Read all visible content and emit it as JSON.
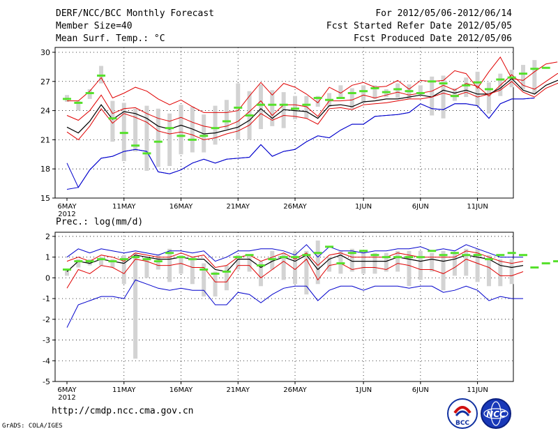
{
  "header": {
    "title": "DERF/NCC/BCC Monthly Forecast",
    "member_size": "Member Size=40",
    "variable": "Mean Surf. Temp.: °C",
    "period": "For 2012/05/06-2012/06/14",
    "fcst_started": "Fcst Started Refer Date 2012/05/05",
    "fcst_produced": "Fcst Produced Date 2012/05/06"
  },
  "footer": {
    "url": "http://cmdp.ncc.cma.gov.cn",
    "grads": "GrADS: COLA/IGES",
    "logo_bcc": "BCC",
    "logo_ncc": "NCC"
  },
  "colors": {
    "box": "#d3d3d3",
    "obs": "#55e02b",
    "mean": "#000000",
    "spread": "#e00000",
    "extreme": "#0000cc"
  },
  "chart_data": [
    {
      "type": "line",
      "title": "Mean Surf. Temp.: °C",
      "x_tick_labels": [
        "6MAY",
        "11MAY",
        "16MAY",
        "21MAY",
        "26MAY",
        "1JUN",
        "6JUN",
        "11JUN"
      ],
      "year_label": "2012",
      "x_tick_days": [
        0,
        5,
        10,
        15,
        20,
        26,
        31,
        36
      ],
      "ylim": [
        15,
        30.5
      ],
      "yticks": [
        15,
        18,
        21,
        24,
        27,
        30
      ],
      "n_days": 40,
      "series": [
        {
          "name": "max",
          "values": [
            18.6,
            16.1,
            17.9,
            19.1,
            19.3,
            19.8,
            20.0,
            19.8,
            17.7,
            17.5,
            17.9,
            18.6,
            19.0,
            18.6,
            19.0,
            19.1,
            19.2,
            20.5,
            19.3,
            19.8,
            20.0,
            20.8,
            21.4,
            21.2,
            22.0,
            22.6,
            22.6,
            23.4,
            23.5,
            23.6,
            23.8,
            24.7,
            24.2,
            24.1,
            24.7,
            24.7,
            24.5,
            23.2,
            24.7,
            25.2,
            25.2,
            25.3
          ]
        },
        {
          "name": "p90",
          "values": [
            25.0,
            25.0,
            26.0,
            27.4,
            25.3,
            25.8,
            26.4,
            26.0,
            25.2,
            24.6,
            25.1,
            24.4,
            23.8,
            23.8,
            23.8,
            24.0,
            25.5,
            26.9,
            25.6,
            26.8,
            26.4,
            25.7,
            24.8,
            26.4,
            25.8,
            26.6,
            26.9,
            26.4,
            26.5,
            27.1,
            26.2,
            27.1,
            27.0,
            27.1,
            28.1,
            27.8,
            26.3,
            28.0,
            29.5,
            27.3,
            27.1,
            28.0,
            28.8,
            29.0
          ]
        },
        {
          "name": "p75",
          "values": [
            23.5,
            23.0,
            24.0,
            25.6,
            23.7,
            24.2,
            24.3,
            23.7,
            23.2,
            22.9,
            23.3,
            22.8,
            22.4,
            22.2,
            22.4,
            22.9,
            23.9,
            25.0,
            23.5,
            24.6,
            24.6,
            24.4,
            23.4,
            25.0,
            25.0,
            25.1,
            25.6,
            25.3,
            25.6,
            25.9,
            25.6,
            25.8,
            26.0,
            26.6,
            26.1,
            26.8,
            26.5,
            25.5,
            26.6,
            27.7,
            26.6,
            26.2,
            27.0,
            27.8,
            28.1
          ]
        },
        {
          "name": "mean",
          "values": [
            22.3,
            21.7,
            22.9,
            24.6,
            23.1,
            23.9,
            23.7,
            23.2,
            22.4,
            22.1,
            22.5,
            22.1,
            21.6,
            21.7,
            22.0,
            22.3,
            23.0,
            24.2,
            23.2,
            24.1,
            24.0,
            23.9,
            23.2,
            24.5,
            24.6,
            24.4,
            24.9,
            25.0,
            25.2,
            25.2,
            25.4,
            25.6,
            25.4,
            26.1,
            25.8,
            26.1,
            25.7,
            25.7,
            26.3,
            27.3,
            26.1,
            25.7,
            26.6,
            27.1,
            27.4
          ]
        },
        {
          "name": "p25",
          "values": [
            21.8,
            21.0,
            22.4,
            24.2,
            22.7,
            23.7,
            23.3,
            22.8,
            21.9,
            21.6,
            21.8,
            21.5,
            21.0,
            21.2,
            21.6,
            21.9,
            22.5,
            23.7,
            23.0,
            23.5,
            23.4,
            23.2,
            22.6,
            24.2,
            24.3,
            24.1,
            24.6,
            24.7,
            24.8,
            25.0,
            25.2,
            25.2,
            25.4,
            25.8,
            25.5,
            25.9,
            25.4,
            25.7,
            26.1,
            27.0,
            25.9,
            25.4,
            26.3,
            26.8,
            27.2
          ]
        },
        {
          "name": "min",
          "values": [
            15.9,
            16.1,
            17.9,
            19.1,
            19.3,
            19.8,
            20.0,
            19.8,
            17.7,
            17.5,
            17.9,
            18.6,
            19.0,
            18.6,
            19.0,
            19.1,
            19.2,
            20.5,
            19.3,
            19.8,
            20.0,
            20.8,
            21.4,
            21.2,
            22.0,
            22.6,
            22.6,
            23.4,
            23.5,
            23.6,
            23.8,
            24.7,
            24.2,
            24.1,
            24.7,
            24.7,
            24.5,
            23.2,
            24.7,
            25.2,
            25.2,
            25.3
          ]
        },
        {
          "name": "observed",
          "values": [
            25.2,
            24.8,
            25.8,
            27.6,
            23.2,
            21.7,
            20.4,
            19.6,
            20.8,
            22.2,
            21.4,
            21.0,
            21.4,
            22.2,
            22.9,
            24.3,
            23.5,
            24.6,
            24.6,
            24.6,
            24.2,
            24.6,
            25.3,
            25.1,
            25.3,
            25.8,
            26.0,
            26.3,
            25.9,
            26.2,
            26.0,
            25.8,
            27.0,
            26.8,
            25.5,
            26.6,
            26.9,
            26.2,
            27.2,
            27.4,
            27.8,
            28.3,
            28.4
          ]
        },
        {
          "name": "box_high",
          "values": [
            25.6,
            25.0,
            26.2,
            28.6,
            25.0,
            24.8,
            24.2,
            24.5,
            24.2,
            23.7,
            24.6,
            24.4,
            23.6,
            24.5,
            25.1,
            26.8,
            26.0,
            26.7,
            26.1,
            25.9,
            25.5,
            25.5,
            25.5,
            25.8,
            26.6,
            26.3,
            26.6,
            26.6,
            26.2,
            26.8,
            26.7,
            26.6,
            27.5,
            27.6,
            26.3,
            27.4,
            28.0,
            26.9,
            27.8,
            28.2,
            28.7,
            29.2
          ]
        },
        {
          "name": "box_low",
          "values": [
            24.9,
            24.0,
            25.2,
            26.8,
            20.8,
            18.8,
            19.8,
            17.8,
            18.2,
            18.3,
            19.5,
            19.7,
            19.7,
            20.5,
            22.1,
            21.0,
            21.0,
            22.1,
            22.4,
            22.2,
            23.1,
            23.2,
            24.4,
            24.4,
            25.2,
            24.2,
            24.8,
            25.2,
            25.4,
            25.3,
            25.2,
            25.6,
            23.5,
            23.2,
            25.0,
            25.4,
            24.5,
            23.7,
            25.5,
            26.4,
            26.2,
            25.7
          ]
        }
      ],
      "xlabel": "",
      "ylabel": ""
    },
    {
      "type": "line",
      "title": "Prec.: log(mm/d)",
      "x_tick_labels": [
        "6MAY",
        "11MAY",
        "16MAY",
        "21MAY",
        "26MAY",
        "1JUN",
        "6JUN",
        "11JUN"
      ],
      "year_label": "2012",
      "x_tick_days": [
        0,
        5,
        10,
        15,
        20,
        26,
        31,
        36
      ],
      "ylim": [
        -5,
        2.2
      ],
      "yticks": [
        -5,
        -4,
        -3,
        -2,
        -1,
        0,
        1,
        2
      ],
      "n_days": 40,
      "series": [
        {
          "name": "max",
          "values": [
            1.0,
            1.4,
            1.2,
            1.4,
            1.3,
            1.2,
            1.3,
            1.2,
            1.1,
            1.3,
            1.3,
            1.2,
            1.3,
            0.8,
            1.0,
            1.3,
            1.3,
            1.4,
            1.4,
            1.3,
            1.1,
            1.6,
            1.0,
            1.5,
            1.3,
            1.3,
            1.2,
            1.3,
            1.3,
            1.4,
            1.4,
            1.5,
            1.3,
            1.4,
            1.3,
            1.6,
            1.4,
            1.2,
            1.0,
            1.0,
            1.0
          ]
        },
        {
          "name": "p90",
          "values": [
            0.8,
            1.0,
            0.8,
            1.1,
            1.0,
            0.8,
            1.2,
            1.1,
            1.0,
            1.0,
            1.2,
            1.0,
            1.1,
            0.5,
            0.6,
            1.0,
            1.1,
            0.8,
            1.0,
            1.2,
            0.9,
            1.2,
            0.6,
            1.1,
            1.2,
            1.0,
            1.0,
            1.0,
            1.0,
            1.2,
            1.1,
            1.0,
            1.0,
            1.0,
            1.0,
            1.3,
            1.2,
            1.0,
            0.8,
            0.7,
            0.8
          ]
        },
        {
          "name": "mean",
          "values": [
            0.3,
            0.8,
            0.7,
            0.9,
            0.8,
            0.7,
            1.1,
            1.0,
            0.9,
            0.9,
            1.0,
            0.9,
            0.9,
            0.4,
            0.3,
            0.9,
            0.9,
            0.5,
            0.8,
            1.0,
            0.8,
            1.1,
            0.4,
            0.9,
            1.1,
            0.8,
            0.8,
            0.8,
            0.8,
            1.0,
            0.9,
            0.8,
            0.9,
            0.8,
            0.9,
            1.1,
            1.0,
            0.9,
            0.6,
            0.5,
            0.6
          ]
        },
        {
          "name": "p10",
          "values": [
            -0.5,
            0.4,
            0.2,
            0.6,
            0.5,
            0.2,
            0.9,
            0.8,
            0.6,
            0.6,
            0.7,
            0.5,
            0.5,
            -0.2,
            -0.2,
            0.6,
            0.6,
            0.0,
            0.4,
            0.8,
            0.4,
            0.9,
            -0.1,
            0.6,
            0.7,
            0.4,
            0.5,
            0.5,
            0.4,
            0.7,
            0.6,
            0.4,
            0.4,
            0.2,
            0.5,
            0.9,
            0.7,
            0.5,
            0.1,
            0.1,
            0.3
          ]
        },
        {
          "name": "min",
          "values": [
            -2.4,
            -1.3,
            -1.1,
            -0.9,
            -0.9,
            -1.0,
            -0.1,
            -0.3,
            -0.5,
            -0.6,
            -0.5,
            -0.6,
            -0.6,
            -1.3,
            -1.3,
            -0.7,
            -0.8,
            -1.2,
            -0.8,
            -0.5,
            -0.4,
            -0.4,
            -1.1,
            -0.6,
            -0.4,
            -0.4,
            -0.6,
            -0.4,
            -0.4,
            -0.4,
            -0.5,
            -0.4,
            -0.4,
            -0.7,
            -0.6,
            -0.4,
            -0.6,
            -1.1,
            -0.9,
            -1.0,
            -1.0
          ]
        },
        {
          "name": "observed",
          "values": [
            0.4,
            0.8,
            0.8,
            0.9,
            0.8,
            0.9,
            1.0,
            0.9,
            0.8,
            1.2,
            1.0,
            0.9,
            0.4,
            0.2,
            0.3,
            1.0,
            1.1,
            0.6,
            0.9,
            1.0,
            1.0,
            1.1,
            1.2,
            1.5,
            0.7,
            1.2,
            1.3,
            1.1,
            1.0,
            1.0,
            1.0,
            1.0,
            1.3,
            1.1,
            1.2,
            1.1,
            1.1,
            0.9,
            1.1,
            1.2,
            1.1,
            0.5,
            0.7,
            0.8
          ]
        },
        {
          "name": "box_high",
          "values": [
            0.4,
            0.9,
            0.9,
            1.0,
            0.9,
            1.1,
            1.2,
            1.0,
            1.1,
            1.4,
            1.1,
            1.0,
            0.7,
            0.3,
            0.6,
            1.1,
            1.1,
            0.8,
            1.3,
            1.2,
            1.3,
            1.3,
            1.8,
            1.0,
            1.3,
            1.4,
            1.3,
            1.2,
            1.2,
            1.3,
            1.3,
            1.3,
            1.2,
            1.3,
            1.2,
            1.4,
            1.4,
            1.1,
            0.9,
            0.9
          ]
        },
        {
          "name": "box_low",
          "values": [
            0.1,
            0.5,
            0.6,
            0.6,
            0.5,
            -0.3,
            -3.9,
            0.0,
            0.4,
            -0.2,
            0.2,
            -0.3,
            -0.9,
            -0.9,
            -0.6,
            0.4,
            0.3,
            -0.4,
            0.4,
            -0.1,
            -0.3,
            -0.8,
            -0.3,
            0.3,
            0.2,
            0.3,
            0.2,
            0.2,
            0.3,
            0.3,
            -0.4,
            -0.1,
            0.3,
            -0.6,
            0.1,
            0.1,
            -0.2,
            -0.4,
            -0.4,
            -0.3
          ]
        }
      ],
      "xlabel": "",
      "ylabel": ""
    }
  ]
}
